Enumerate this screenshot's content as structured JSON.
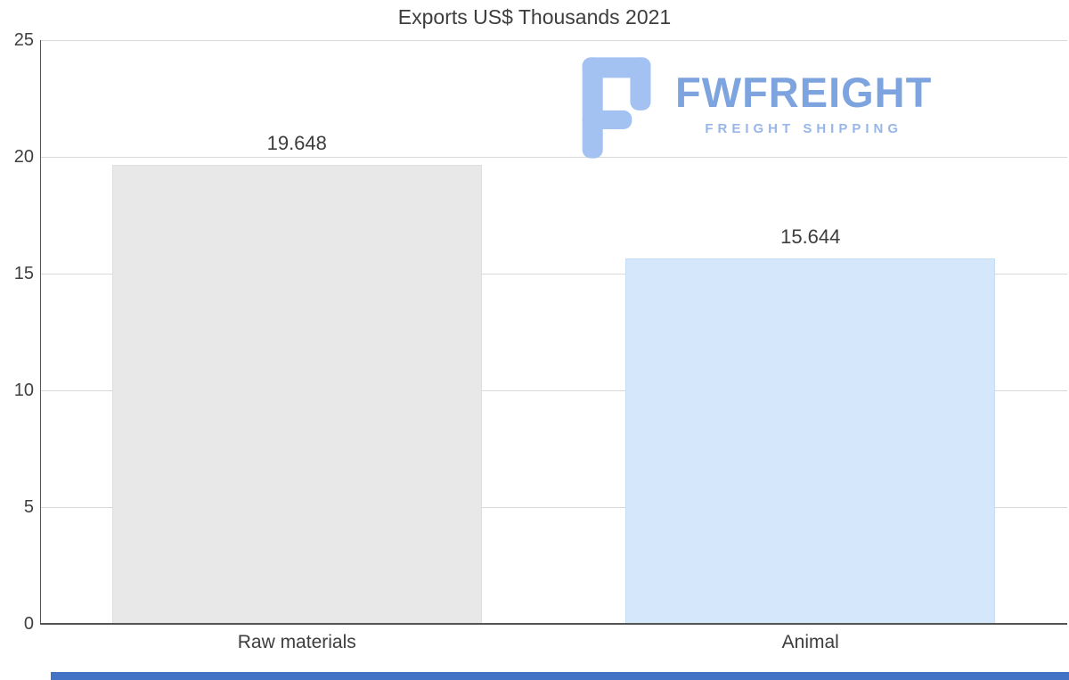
{
  "chart_data": {
    "type": "bar",
    "title": "Exports US$ Thousands 2021",
    "categories": [
      "Raw materials",
      "Animal"
    ],
    "values": [
      19.648,
      15.644
    ],
    "value_labels": [
      "19.648",
      "15.644"
    ],
    "bar_colors": [
      "#e8e8e8",
      "#d4e7fb"
    ],
    "bar_border_colors": [
      "#dedede",
      "#c6ddf5"
    ],
    "xlabel": "",
    "ylabel": "",
    "ylim": [
      0,
      25
    ],
    "yticks": [
      0,
      5,
      10,
      15,
      20,
      25
    ],
    "grid": true,
    "legend_position": "none"
  },
  "watermark": {
    "name": "FWFREIGHT",
    "tagline": "FREIGHT SHIPPING",
    "icon": "fwfreight-f-logo-icon",
    "color_name": "#7da4de",
    "color_tagline": "#98b6e8",
    "color_icon": "#a3c2f1"
  },
  "colors": {
    "text": "#404040",
    "gridline": "#d9d9d9",
    "axis": "#545454",
    "bottom_strip": "#4472c4",
    "background": "#ffffff"
  }
}
